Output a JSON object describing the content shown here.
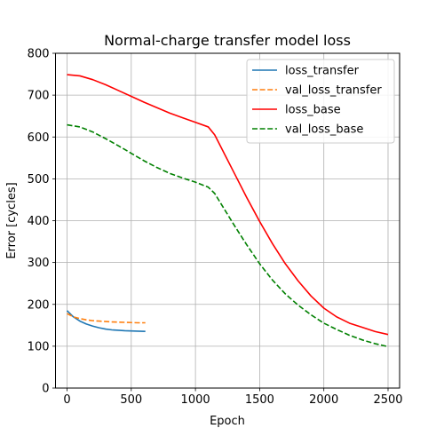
{
  "chart_data": {
    "type": "line",
    "title": "Normal-charge transfer model loss",
    "xlabel": "Epoch",
    "ylabel": "Error [cycles]",
    "xlim": [
      -90,
      2590
    ],
    "ylim": [
      0,
      800
    ],
    "xticks": [
      0,
      500,
      1000,
      1500,
      2000,
      2500
    ],
    "yticks": [
      0,
      100,
      200,
      300,
      400,
      500,
      600,
      700,
      800
    ],
    "grid": true,
    "legend_position": "top-right",
    "series": [
      {
        "name": "loss_transfer",
        "color": "#1f77b4",
        "style": "solid",
        "x": [
          0,
          50,
          100,
          150,
          200,
          250,
          300,
          350,
          400,
          450,
          500,
          550,
          610
        ],
        "y": [
          185,
          170,
          160,
          153,
          148,
          144,
          141,
          139,
          138,
          137,
          136.5,
          136,
          135.5
        ]
      },
      {
        "name": "val_loss_transfer",
        "color": "#ff7f0e",
        "style": "dashed",
        "x": [
          0,
          50,
          100,
          150,
          200,
          250,
          300,
          350,
          400,
          450,
          500,
          550,
          610
        ],
        "y": [
          178,
          170,
          166,
          163,
          161,
          160,
          159,
          158,
          157.5,
          157,
          156.5,
          156,
          156
        ]
      },
      {
        "name": "loss_base",
        "color": "#ff0000",
        "style": "solid",
        "x": [
          0,
          100,
          200,
          300,
          400,
          500,
          600,
          700,
          800,
          900,
          1000,
          1100,
          1150,
          1200,
          1300,
          1400,
          1500,
          1600,
          1700,
          1800,
          1900,
          2000,
          2100,
          2200,
          2300,
          2400,
          2500
        ],
        "y": [
          749,
          746,
          737,
          725,
          711,
          697,
          683,
          670,
          657,
          646,
          635,
          624,
          605,
          575,
          515,
          455,
          398,
          345,
          297,
          256,
          220,
          191,
          170,
          155,
          145,
          135,
          128
        ]
      },
      {
        "name": "val_loss_base",
        "color": "#008000",
        "style": "dashed",
        "x": [
          0,
          100,
          200,
          300,
          400,
          500,
          600,
          700,
          800,
          900,
          1000,
          1100,
          1150,
          1200,
          1300,
          1400,
          1500,
          1600,
          1700,
          1800,
          1900,
          2000,
          2100,
          2200,
          2300,
          2400,
          2500
        ],
        "y": [
          629,
          624,
          612,
          596,
          579,
          561,
          543,
          527,
          513,
          502,
          492,
          480,
          465,
          440,
          390,
          342,
          297,
          258,
          225,
          198,
          175,
          155,
          140,
          126,
          115,
          106,
          99
        ]
      }
    ]
  }
}
